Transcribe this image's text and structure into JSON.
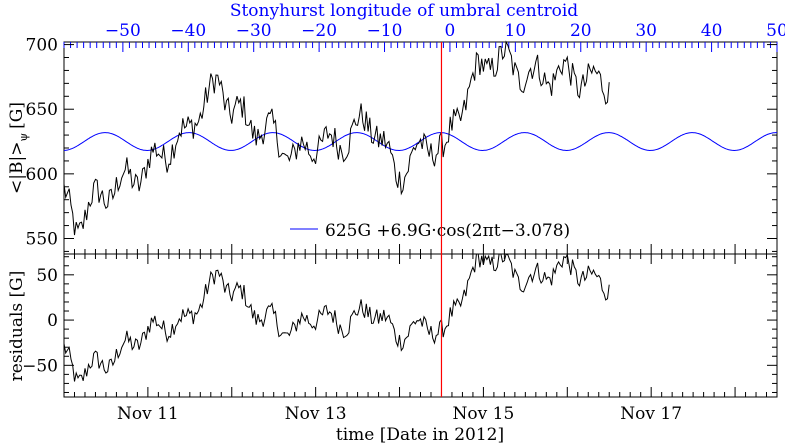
{
  "colors": {
    "axes": "#000000",
    "top_axis": "#0000ff",
    "fit_curve": "#0000ff",
    "marker": "#ff0000",
    "data": "#000000"
  },
  "chart_data": [
    {
      "panel": "upper",
      "type": "line",
      "ylabel": "<|B|>",
      "ylabel_sub": "ψ",
      "ylabel_unit": "[G]",
      "ylim": [
        538,
        702
      ],
      "yticks": [
        550,
        600,
        650,
        700
      ],
      "top_axis": {
        "label": "Stonyhurst longitude of umbral centroid",
        "range": [
          -59,
          50
        ],
        "ticks": [
          -50,
          -40,
          -30,
          -20,
          -10,
          0,
          10,
          20,
          30,
          40,
          50
        ],
        "minor_step": 1
      },
      "fit": {
        "legend": "625G +6.9G·cos(2πt−3.078)",
        "mean": 625,
        "amplitude": 6.9,
        "period_days": 1,
        "phase": -3.078,
        "phase_reference": "2012-11-10"
      },
      "observed_series": {
        "x_range": [
          "2012-11-10",
          "2012-11-16 12:00"
        ],
        "samples_per_day": 48,
        "smooth_knots": [
          [
            0.0,
            580
          ],
          [
            0.15,
            560
          ],
          [
            0.3,
            575
          ],
          [
            0.6,
            590
          ],
          [
            0.9,
            600
          ],
          [
            1.1,
            612
          ],
          [
            1.3,
            625
          ],
          [
            1.45,
            628
          ],
          [
            1.55,
            645
          ],
          [
            1.75,
            660
          ],
          [
            1.85,
            672
          ],
          [
            2.0,
            650
          ],
          [
            2.2,
            640
          ],
          [
            2.5,
            630
          ],
          [
            2.75,
            612
          ],
          [
            3.0,
            625
          ],
          [
            3.2,
            622
          ],
          [
            3.4,
            630
          ],
          [
            3.6,
            640
          ],
          [
            3.7,
            638
          ],
          [
            3.85,
            615
          ],
          [
            3.95,
            600
          ],
          [
            4.05,
            605
          ],
          [
            4.2,
            615
          ],
          [
            4.4,
            625
          ],
          [
            4.55,
            615
          ],
          [
            4.65,
            640
          ],
          [
            4.8,
            660
          ],
          [
            4.95,
            680
          ],
          [
            5.1,
            690
          ],
          [
            5.3,
            685
          ],
          [
            5.6,
            675
          ],
          [
            5.9,
            678
          ],
          [
            6.1,
            676
          ],
          [
            6.3,
            670
          ],
          [
            6.5,
            672
          ]
        ],
        "ripple_amplitude_G": 9,
        "noise_amplitude_G": 11
      }
    },
    {
      "panel": "lower",
      "type": "line",
      "ylabel": "residuals [G]",
      "ylim": [
        -85,
        73
      ],
      "yticks": [
        -50,
        0,
        50
      ],
      "xlabel": "time [Date in 2012]",
      "x_range": [
        "2012-11-10",
        "2012-11-18 12:00"
      ],
      "xticks": [
        {
          "date": "2012-11-11",
          "label": "Nov 11"
        },
        {
          "date": "2012-11-13",
          "label": "Nov 13"
        },
        {
          "date": "2012-11-15",
          "label": "Nov 15"
        },
        {
          "date": "2012-11-17",
          "label": "Nov 17"
        }
      ],
      "minor_tick_hours": 3,
      "series": "observed minus fit"
    }
  ],
  "marker_line": {
    "date": "2012-11-14 12:00"
  }
}
